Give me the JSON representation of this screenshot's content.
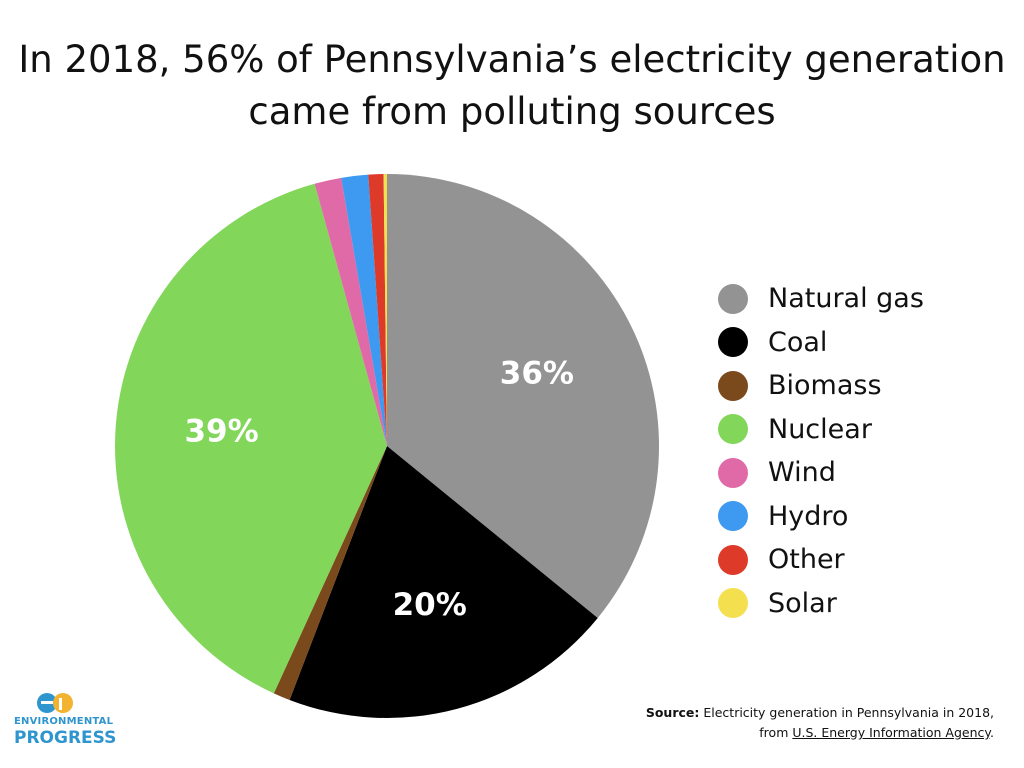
{
  "title": {
    "line1": "In 2018, 56% of Pennsylvania’s electricity generation",
    "line2": "came from polluting sources"
  },
  "chart_data": {
    "type": "pie",
    "title": "In 2018, 56% of Pennsylvania’s electricity generation came from polluting sources",
    "slices": [
      {
        "name": "Natural gas",
        "value": 36,
        "color": "#939393",
        "label": "36%"
      },
      {
        "name": "Coal",
        "value": 20,
        "color": "#000000",
        "label": "20%"
      },
      {
        "name": "Biomass",
        "value": 1,
        "color": "#7b4a1c",
        "label": ""
      },
      {
        "name": "Nuclear",
        "value": 39,
        "color": "#82d65a",
        "label": "39%"
      },
      {
        "name": "Wind",
        "value": 1.6,
        "color": "#e06aa8",
        "label": ""
      },
      {
        "name": "Hydro",
        "value": 1.6,
        "color": "#3d9af0",
        "label": ""
      },
      {
        "name": "Other",
        "value": 0.9,
        "color": "#dd3a2a",
        "label": ""
      },
      {
        "name": "Solar",
        "value": 0.2,
        "color": "#f4e04f",
        "label": ""
      }
    ],
    "legend": {
      "position": "right",
      "items": [
        "Natural gas",
        "Coal",
        "Biomass",
        "Nuclear",
        "Wind",
        "Hydro",
        "Other",
        "Solar"
      ]
    }
  },
  "logo": {
    "name_line1": "ENVIRONMENTAL",
    "name_line2": "PROGRESS",
    "brand_color": "#2f95cf",
    "accent_color": "#f2b330"
  },
  "source": {
    "prefix": "Source:",
    "text_line1": "Electricity generation in Pennsylvania in 2018,",
    "text_line2_before": "from",
    "link_text": "U.S. Energy Information Agency",
    "text_line2_after": "."
  }
}
